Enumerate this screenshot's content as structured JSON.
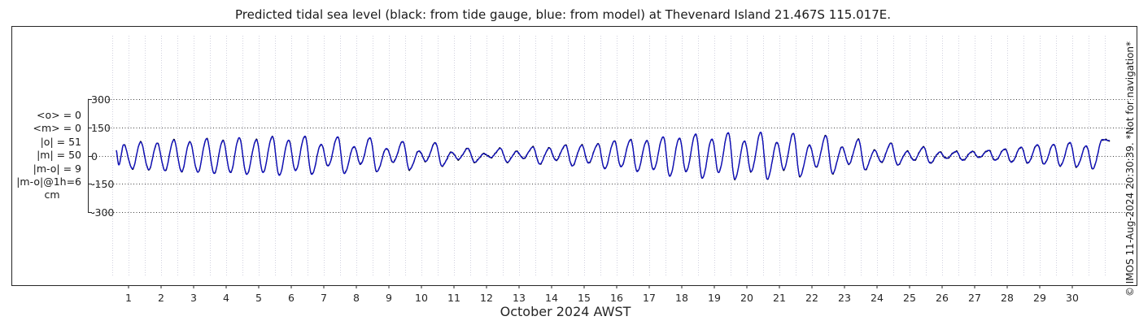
{
  "chart_data": {
    "type": "line",
    "title": "Predicted tidal sea level (black: from tide gauge, blue: from model) at Thevenard Island 21.467S 115.017E.",
    "xlabel": "October 2024 AWST",
    "ylabel": "cm",
    "xlim": [
      0.3,
      31.2
    ],
    "ylim": [
      -320,
      320
    ],
    "y_ticks": [
      -300,
      -150,
      0,
      150,
      300
    ],
    "y_tick_labels": [
      "-300",
      "-150",
      "0",
      "150",
      "300"
    ],
    "x_ticks": [
      1,
      2,
      3,
      4,
      5,
      6,
      7,
      8,
      9,
      10,
      11,
      12,
      13,
      14,
      15,
      16,
      17,
      18,
      19,
      20,
      21,
      22,
      23,
      24,
      25,
      26,
      27,
      28,
      29,
      30
    ],
    "x_tick_labels": [
      "1",
      "2",
      "3",
      "4",
      "5",
      "6",
      "7",
      "8",
      "9",
      "10",
      "11",
      "12",
      "13",
      "14",
      "15",
      "16",
      "17",
      "18",
      "19",
      "20",
      "21",
      "22",
      "23",
      "24",
      "25",
      "26",
      "27",
      "28",
      "29",
      "30"
    ],
    "grid": true,
    "series": [
      {
        "description": "black: from tide gauge",
        "color": "#000000",
        "peaks": [
          {
            "x": 0.85,
            "y": 58
          },
          {
            "x": 1.37,
            "y": 72
          },
          {
            "x": 1.88,
            "y": 66
          },
          {
            "x": 2.39,
            "y": 83
          },
          {
            "x": 2.88,
            "y": 73
          },
          {
            "x": 3.4,
            "y": 90
          },
          {
            "x": 3.9,
            "y": 80
          },
          {
            "x": 4.4,
            "y": 95
          },
          {
            "x": 4.93,
            "y": 84
          },
          {
            "x": 5.42,
            "y": 101
          },
          {
            "x": 5.92,
            "y": 82
          },
          {
            "x": 6.42,
            "y": 103
          },
          {
            "x": 6.92,
            "y": 60
          },
          {
            "x": 7.43,
            "y": 100
          },
          {
            "x": 7.93,
            "y": 48
          },
          {
            "x": 8.42,
            "y": 95
          },
          {
            "x": 8.93,
            "y": 38
          },
          {
            "x": 9.43,
            "y": 75
          },
          {
            "x": 9.93,
            "y": 25
          },
          {
            "x": 10.43,
            "y": 68
          },
          {
            "x": 10.93,
            "y": 18
          },
          {
            "x": 11.43,
            "y": 38
          },
          {
            "x": 11.93,
            "y": 10
          },
          {
            "x": 12.43,
            "y": 38
          },
          {
            "x": 12.93,
            "y": 22
          },
          {
            "x": 13.43,
            "y": 45
          },
          {
            "x": 13.93,
            "y": 40
          },
          {
            "x": 14.43,
            "y": 55
          },
          {
            "x": 14.93,
            "y": 55
          },
          {
            "x": 15.43,
            "y": 62
          },
          {
            "x": 15.93,
            "y": 78
          },
          {
            "x": 16.43,
            "y": 85
          },
          {
            "x": 16.93,
            "y": 80
          },
          {
            "x": 17.43,
            "y": 100
          },
          {
            "x": 17.93,
            "y": 93
          },
          {
            "x": 18.43,
            "y": 115
          },
          {
            "x": 18.93,
            "y": 88
          },
          {
            "x": 19.43,
            "y": 122
          },
          {
            "x": 19.93,
            "y": 78
          },
          {
            "x": 20.43,
            "y": 124
          },
          {
            "x": 20.93,
            "y": 70
          },
          {
            "x": 21.43,
            "y": 118
          },
          {
            "x": 21.93,
            "y": 55
          },
          {
            "x": 22.43,
            "y": 105
          },
          {
            "x": 22.93,
            "y": 45
          },
          {
            "x": 23.43,
            "y": 85
          },
          {
            "x": 23.93,
            "y": 28
          },
          {
            "x": 24.43,
            "y": 65
          },
          {
            "x": 24.93,
            "y": 22
          },
          {
            "x": 25.43,
            "y": 45
          },
          {
            "x": 25.93,
            "y": 18
          },
          {
            "x": 26.43,
            "y": 22
          },
          {
            "x": 26.93,
            "y": 22
          },
          {
            "x": 27.43,
            "y": 28
          },
          {
            "x": 27.93,
            "y": 35
          },
          {
            "x": 28.43,
            "y": 45
          },
          {
            "x": 28.93,
            "y": 58
          },
          {
            "x": 29.43,
            "y": 60
          },
          {
            "x": 29.93,
            "y": 70
          },
          {
            "x": 30.43,
            "y": 52
          },
          {
            "x": 30.93,
            "y": 85
          }
        ],
        "troughs": [
          {
            "x": 0.7,
            "y": -50
          },
          {
            "x": 1.12,
            "y": -70
          },
          {
            "x": 1.62,
            "y": -75
          },
          {
            "x": 2.12,
            "y": -80
          },
          {
            "x": 2.63,
            "y": -85
          },
          {
            "x": 3.13,
            "y": -88
          },
          {
            "x": 3.63,
            "y": -95
          },
          {
            "x": 4.13,
            "y": -90
          },
          {
            "x": 4.63,
            "y": -100
          },
          {
            "x": 5.13,
            "y": -90
          },
          {
            "x": 5.63,
            "y": -105
          },
          {
            "x": 6.13,
            "y": -80
          },
          {
            "x": 6.63,
            "y": -100
          },
          {
            "x": 7.13,
            "y": -55
          },
          {
            "x": 7.63,
            "y": -95
          },
          {
            "x": 8.13,
            "y": -45
          },
          {
            "x": 8.63,
            "y": -85
          },
          {
            "x": 9.13,
            "y": -35
          },
          {
            "x": 9.63,
            "y": -75
          },
          {
            "x": 10.13,
            "y": -30
          },
          {
            "x": 10.63,
            "y": -55
          },
          {
            "x": 11.13,
            "y": -20
          },
          {
            "x": 11.63,
            "y": -35
          },
          {
            "x": 12.13,
            "y": -10
          },
          {
            "x": 12.63,
            "y": -35
          },
          {
            "x": 13.13,
            "y": -15
          },
          {
            "x": 13.63,
            "y": -45
          },
          {
            "x": 14.13,
            "y": -25
          },
          {
            "x": 14.63,
            "y": -55
          },
          {
            "x": 15.13,
            "y": -40
          },
          {
            "x": 15.63,
            "y": -70
          },
          {
            "x": 16.13,
            "y": -60
          },
          {
            "x": 16.63,
            "y": -85
          },
          {
            "x": 17.13,
            "y": -75
          },
          {
            "x": 17.63,
            "y": -110
          },
          {
            "x": 18.13,
            "y": -85
          },
          {
            "x": 18.63,
            "y": -120
          },
          {
            "x": 19.13,
            "y": -90
          },
          {
            "x": 19.63,
            "y": -125
          },
          {
            "x": 20.13,
            "y": -85
          },
          {
            "x": 20.63,
            "y": -125
          },
          {
            "x": 21.13,
            "y": -75
          },
          {
            "x": 21.63,
            "y": -110
          },
          {
            "x": 22.13,
            "y": -60
          },
          {
            "x": 22.63,
            "y": -95
          },
          {
            "x": 23.13,
            "y": -45
          },
          {
            "x": 23.63,
            "y": -75
          },
          {
            "x": 24.13,
            "y": -35
          },
          {
            "x": 24.63,
            "y": -50
          },
          {
            "x": 25.13,
            "y": -25
          },
          {
            "x": 25.63,
            "y": -40
          },
          {
            "x": 26.13,
            "y": -15
          },
          {
            "x": 26.63,
            "y": -25
          },
          {
            "x": 27.13,
            "y": -10
          },
          {
            "x": 27.63,
            "y": -25
          },
          {
            "x": 28.13,
            "y": -35
          },
          {
            "x": 28.63,
            "y": -40
          },
          {
            "x": 29.13,
            "y": -45
          },
          {
            "x": 29.63,
            "y": -55
          },
          {
            "x": 30.13,
            "y": -60
          },
          {
            "x": 30.63,
            "y": -70
          }
        ]
      },
      {
        "description": "blue: from model",
        "color": "#1010d0",
        "follows": "black: from tide gauge"
      }
    ]
  },
  "stats": [
    "<o> = 0",
    "<m> = 0",
    "|o| = 51",
    "|m| = 50",
    "|m-o| = 9",
    "|m-o|@1h=6"
  ],
  "stats_unit": "cm",
  "credit": "© IMOS 11-Aug-2024 20:30:39. *Not for navigation*"
}
